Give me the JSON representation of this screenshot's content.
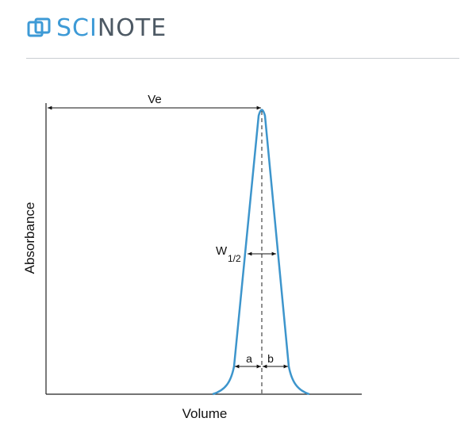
{
  "brand": {
    "name_part1": "SCI",
    "name_part2": "NOTE",
    "logo_icon": "overlapping-squares-icon",
    "accent_color": "#3d9ad6",
    "text_color": "#4d5964"
  },
  "diagram": {
    "y_axis_label": "Absorbance",
    "x_axis_label": "Volume",
    "elution_volume_label": "Ve",
    "half_width_label": "W",
    "half_width_subscript": "1/2",
    "left_half_label": "a",
    "right_half_label": "b",
    "peak_color": "#3d95cc"
  }
}
